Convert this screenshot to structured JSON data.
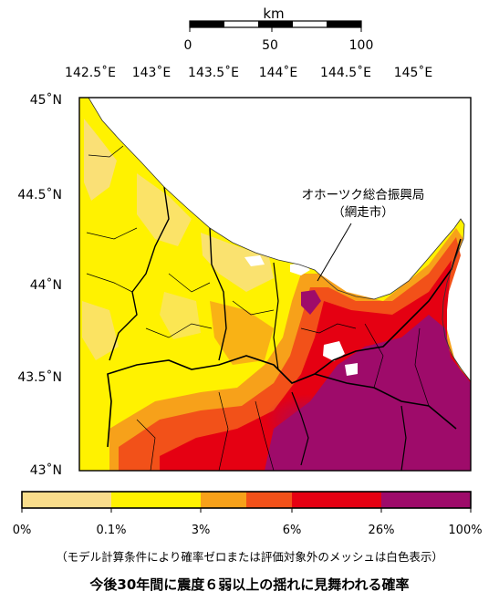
{
  "scalebar": {
    "unit": "km",
    "ticks": [
      "0",
      "50",
      "100"
    ]
  },
  "longitude_labels": [
    "142.5˚E",
    "143˚E",
    "143.5˚E",
    "144˚E",
    "144.5˚E",
    "145˚E"
  ],
  "latitude_labels": [
    "45˚N",
    "44.5˚N",
    "44˚N",
    "43.5˚N",
    "43˚N"
  ],
  "annotation": {
    "line1": "オホーツク総合振興局",
    "line2": "（網走市）"
  },
  "legend": {
    "classes": [
      {
        "color": "#f9dd8b"
      },
      {
        "color": "#fff200"
      },
      {
        "color": "#f7a11a"
      },
      {
        "color": "#f25119"
      },
      {
        "color": "#e50012"
      },
      {
        "color": "#9e0b6a"
      }
    ],
    "tick_labels": [
      "0%",
      "0.1%",
      "3%",
      "6%",
      "26%",
      "100%"
    ]
  },
  "caption": {
    "note": "（モデル計算条件により確率ゼロまたは評価対象外のメッシュは白色表示）",
    "title": "今後30年間に震度６弱以上の揺れに見舞われる確率"
  }
}
